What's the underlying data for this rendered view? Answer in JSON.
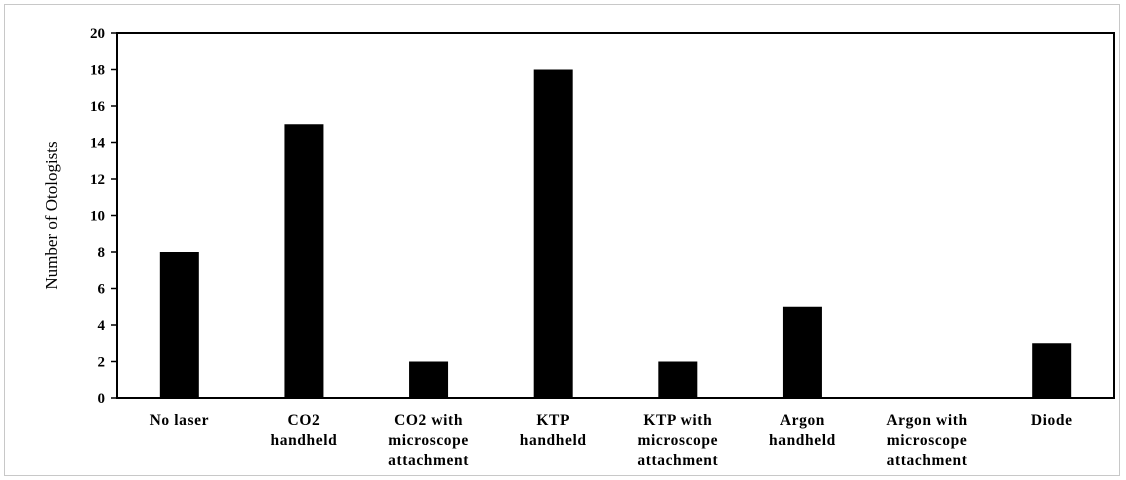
{
  "chart_data": {
    "type": "bar",
    "title": "",
    "xlabel": "",
    "ylabel": "Number of Otologists",
    "ylim": [
      0,
      20
    ],
    "yticks": [
      0,
      2,
      4,
      6,
      8,
      10,
      12,
      14,
      16,
      18,
      20
    ],
    "categories": [
      [
        "No laser"
      ],
      [
        "CO2",
        "handheld"
      ],
      [
        "CO2 with",
        "microscope",
        "attachment"
      ],
      [
        "KTP",
        "handheld"
      ],
      [
        "KTP with",
        "microscope",
        "attachment"
      ],
      [
        "Argon",
        "handheld"
      ],
      [
        "Argon with",
        "microscope",
        "attachment"
      ],
      [
        "Diode"
      ]
    ],
    "values": [
      8,
      15,
      2,
      18,
      2,
      5,
      0,
      3
    ],
    "bar_color": "#000000",
    "grid": false,
    "legend": "none"
  }
}
